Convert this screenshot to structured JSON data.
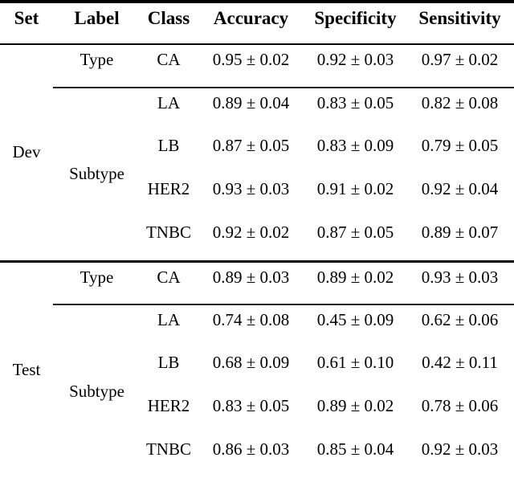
{
  "colors": {
    "text": "#000000",
    "background": "#ffffff",
    "rule": "#000000"
  },
  "table": {
    "columns": [
      "Set",
      "Label",
      "Class",
      "Accuracy",
      "Specificity",
      "Sensitivity"
    ],
    "sections": [
      {
        "set": "Dev",
        "groups": [
          {
            "label": "Type",
            "rows": [
              {
                "class": "CA",
                "accuracy": "0.95 ± 0.02",
                "specificity": "0.92 ± 0.03",
                "sensitivity": "0.97 ± 0.02"
              }
            ]
          },
          {
            "label": "Subtype",
            "rows": [
              {
                "class": "LA",
                "accuracy": "0.89 ± 0.04",
                "specificity": "0.83 ± 0.05",
                "sensitivity": "0.82 ± 0.08"
              },
              {
                "class": "LB",
                "accuracy": "0.87 ± 0.05",
                "specificity": "0.83 ± 0.09",
                "sensitivity": "0.79 ± 0.05"
              },
              {
                "class": "HER2",
                "accuracy": "0.93 ± 0.03",
                "specificity": "0.91 ± 0.02",
                "sensitivity": "0.92 ± 0.04"
              },
              {
                "class": "TNBC",
                "accuracy": "0.92 ± 0.02",
                "specificity": "0.87 ± 0.05",
                "sensitivity": "0.89 ± 0.07"
              }
            ]
          }
        ]
      },
      {
        "set": "Test",
        "groups": [
          {
            "label": "Type",
            "rows": [
              {
                "class": "CA",
                "accuracy": "0.89 ± 0.03",
                "specificity": "0.89 ± 0.02",
                "sensitivity": "0.93 ± 0.03"
              }
            ]
          },
          {
            "label": "Subtype",
            "rows": [
              {
                "class": "LA",
                "accuracy": "0.74 ± 0.08",
                "specificity": "0.45 ± 0.09",
                "sensitivity": "0.62 ± 0.06"
              },
              {
                "class": "LB",
                "accuracy": "0.68 ± 0.09",
                "specificity": "0.61 ± 0.10",
                "sensitivity": "0.42 ± 0.11"
              },
              {
                "class": "HER2",
                "accuracy": "0.83 ± 0.05",
                "specificity": "0.89 ± 0.02",
                "sensitivity": "0.78 ± 0.06"
              },
              {
                "class": "TNBC",
                "accuracy": "0.86 ± 0.03",
                "specificity": "0.85 ± 0.04",
                "sensitivity": "0.92 ± 0.03"
              }
            ]
          }
        ]
      }
    ]
  }
}
